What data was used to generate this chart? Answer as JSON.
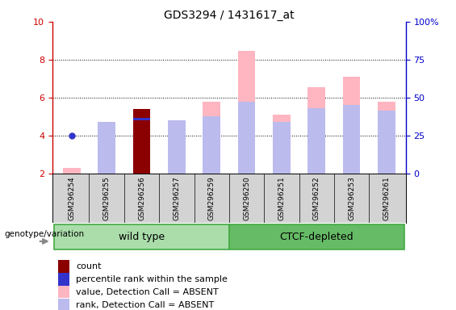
{
  "title": "GDS3294 / 1431617_at",
  "samples": [
    "GSM296254",
    "GSM296255",
    "GSM296256",
    "GSM296257",
    "GSM296259",
    "GSM296250",
    "GSM296251",
    "GSM296252",
    "GSM296253",
    "GSM296261"
  ],
  "n_wild": 5,
  "n_ctcf": 5,
  "ylim_left": [
    2,
    10
  ],
  "yticks_left": [
    2,
    4,
    6,
    8,
    10
  ],
  "yticks_right_labels": [
    "0",
    "25",
    "50",
    "75",
    "100%"
  ],
  "pink_bar_values": [
    2.28,
    4.72,
    5.42,
    4.82,
    5.8,
    8.48,
    5.1,
    6.55,
    7.1,
    5.8
  ],
  "blue_dot_values": [
    4.02,
    null,
    null,
    null,
    null,
    null,
    null,
    null,
    null,
    null
  ],
  "blue_bar_values": [
    null,
    4.72,
    4.8,
    4.82,
    5.02,
    5.8,
    4.72,
    5.44,
    5.6,
    5.32
  ],
  "dark_red_indices": [
    2
  ],
  "pink_color": "#FFB6C1",
  "blue_bar_color": "#BBBBEE",
  "dark_red_color": "#8B0000",
  "dot_color": "#3333CC",
  "left_tick_color": "#CC0000",
  "right_tick_color": "#0000CC",
  "bar_bottom": 2.0,
  "bar_width": 0.5,
  "legend_labels": [
    "count",
    "percentile rank within the sample",
    "value, Detection Call = ABSENT",
    "rank, Detection Call = ABSENT"
  ],
  "legend_colors": [
    "#8B0000",
    "#3333CC",
    "#FFB6C1",
    "#BBBBEE"
  ],
  "genotype_label": "genotype/variation",
  "wt_label": "wild type",
  "ctcf_label": "CTCF-depleted",
  "wt_color": "#AADDAA",
  "ctcf_color": "#66BB66",
  "sample_box_color": "#D3D3D3"
}
